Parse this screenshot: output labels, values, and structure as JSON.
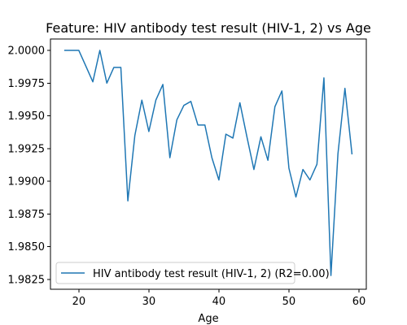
{
  "chart_data": {
    "type": "line",
    "title": "Feature: HIV antibody test result (HIV-1, 2) vs Age",
    "xlabel": "Age",
    "ylabel": "",
    "xlim": [
      15.95,
      61.05
    ],
    "ylim": [
      1.98175,
      2.00087
    ],
    "xticks": [
      20,
      30,
      40,
      50,
      60
    ],
    "yticks": [
      1.9825,
      1.985,
      1.9875,
      1.99,
      1.9925,
      1.995,
      1.9975,
      2.0
    ],
    "ytick_labels": [
      "1.9825",
      "1.9850",
      "1.9875",
      "1.9900",
      "1.9925",
      "1.9950",
      "1.9975",
      "2.0000"
    ],
    "grid": false,
    "legend_position": "lower-left",
    "colors": {
      "series": "#1f77b4"
    },
    "series": [
      {
        "name": "HIV antibody test result (HIV-1, 2) (R2=0.00)",
        "x": [
          18,
          19,
          20,
          21,
          22,
          23,
          24,
          25,
          26,
          27,
          28,
          29,
          30,
          31,
          32,
          33,
          34,
          35,
          36,
          37,
          38,
          39,
          40,
          41,
          42,
          43,
          44,
          45,
          46,
          47,
          48,
          49,
          50,
          51,
          52,
          53,
          54,
          55,
          56,
          57,
          58,
          59
        ],
        "y": [
          2.0,
          2.0,
          2.0,
          1.9988,
          1.9976,
          2.0,
          1.9975,
          1.9987,
          1.9987,
          1.9885,
          1.9935,
          1.9962,
          1.9938,
          1.9962,
          1.9974,
          1.9918,
          1.9947,
          1.9958,
          1.9961,
          1.9943,
          1.9943,
          1.9918,
          1.9901,
          1.9936,
          1.9933,
          1.996,
          1.9934,
          1.9909,
          1.9934,
          1.9916,
          1.9957,
          1.9969,
          1.991,
          1.9888,
          1.9909,
          1.9901,
          1.9913,
          1.9979,
          1.9828,
          1.9921,
          1.9971,
          1.9921
        ]
      }
    ]
  }
}
